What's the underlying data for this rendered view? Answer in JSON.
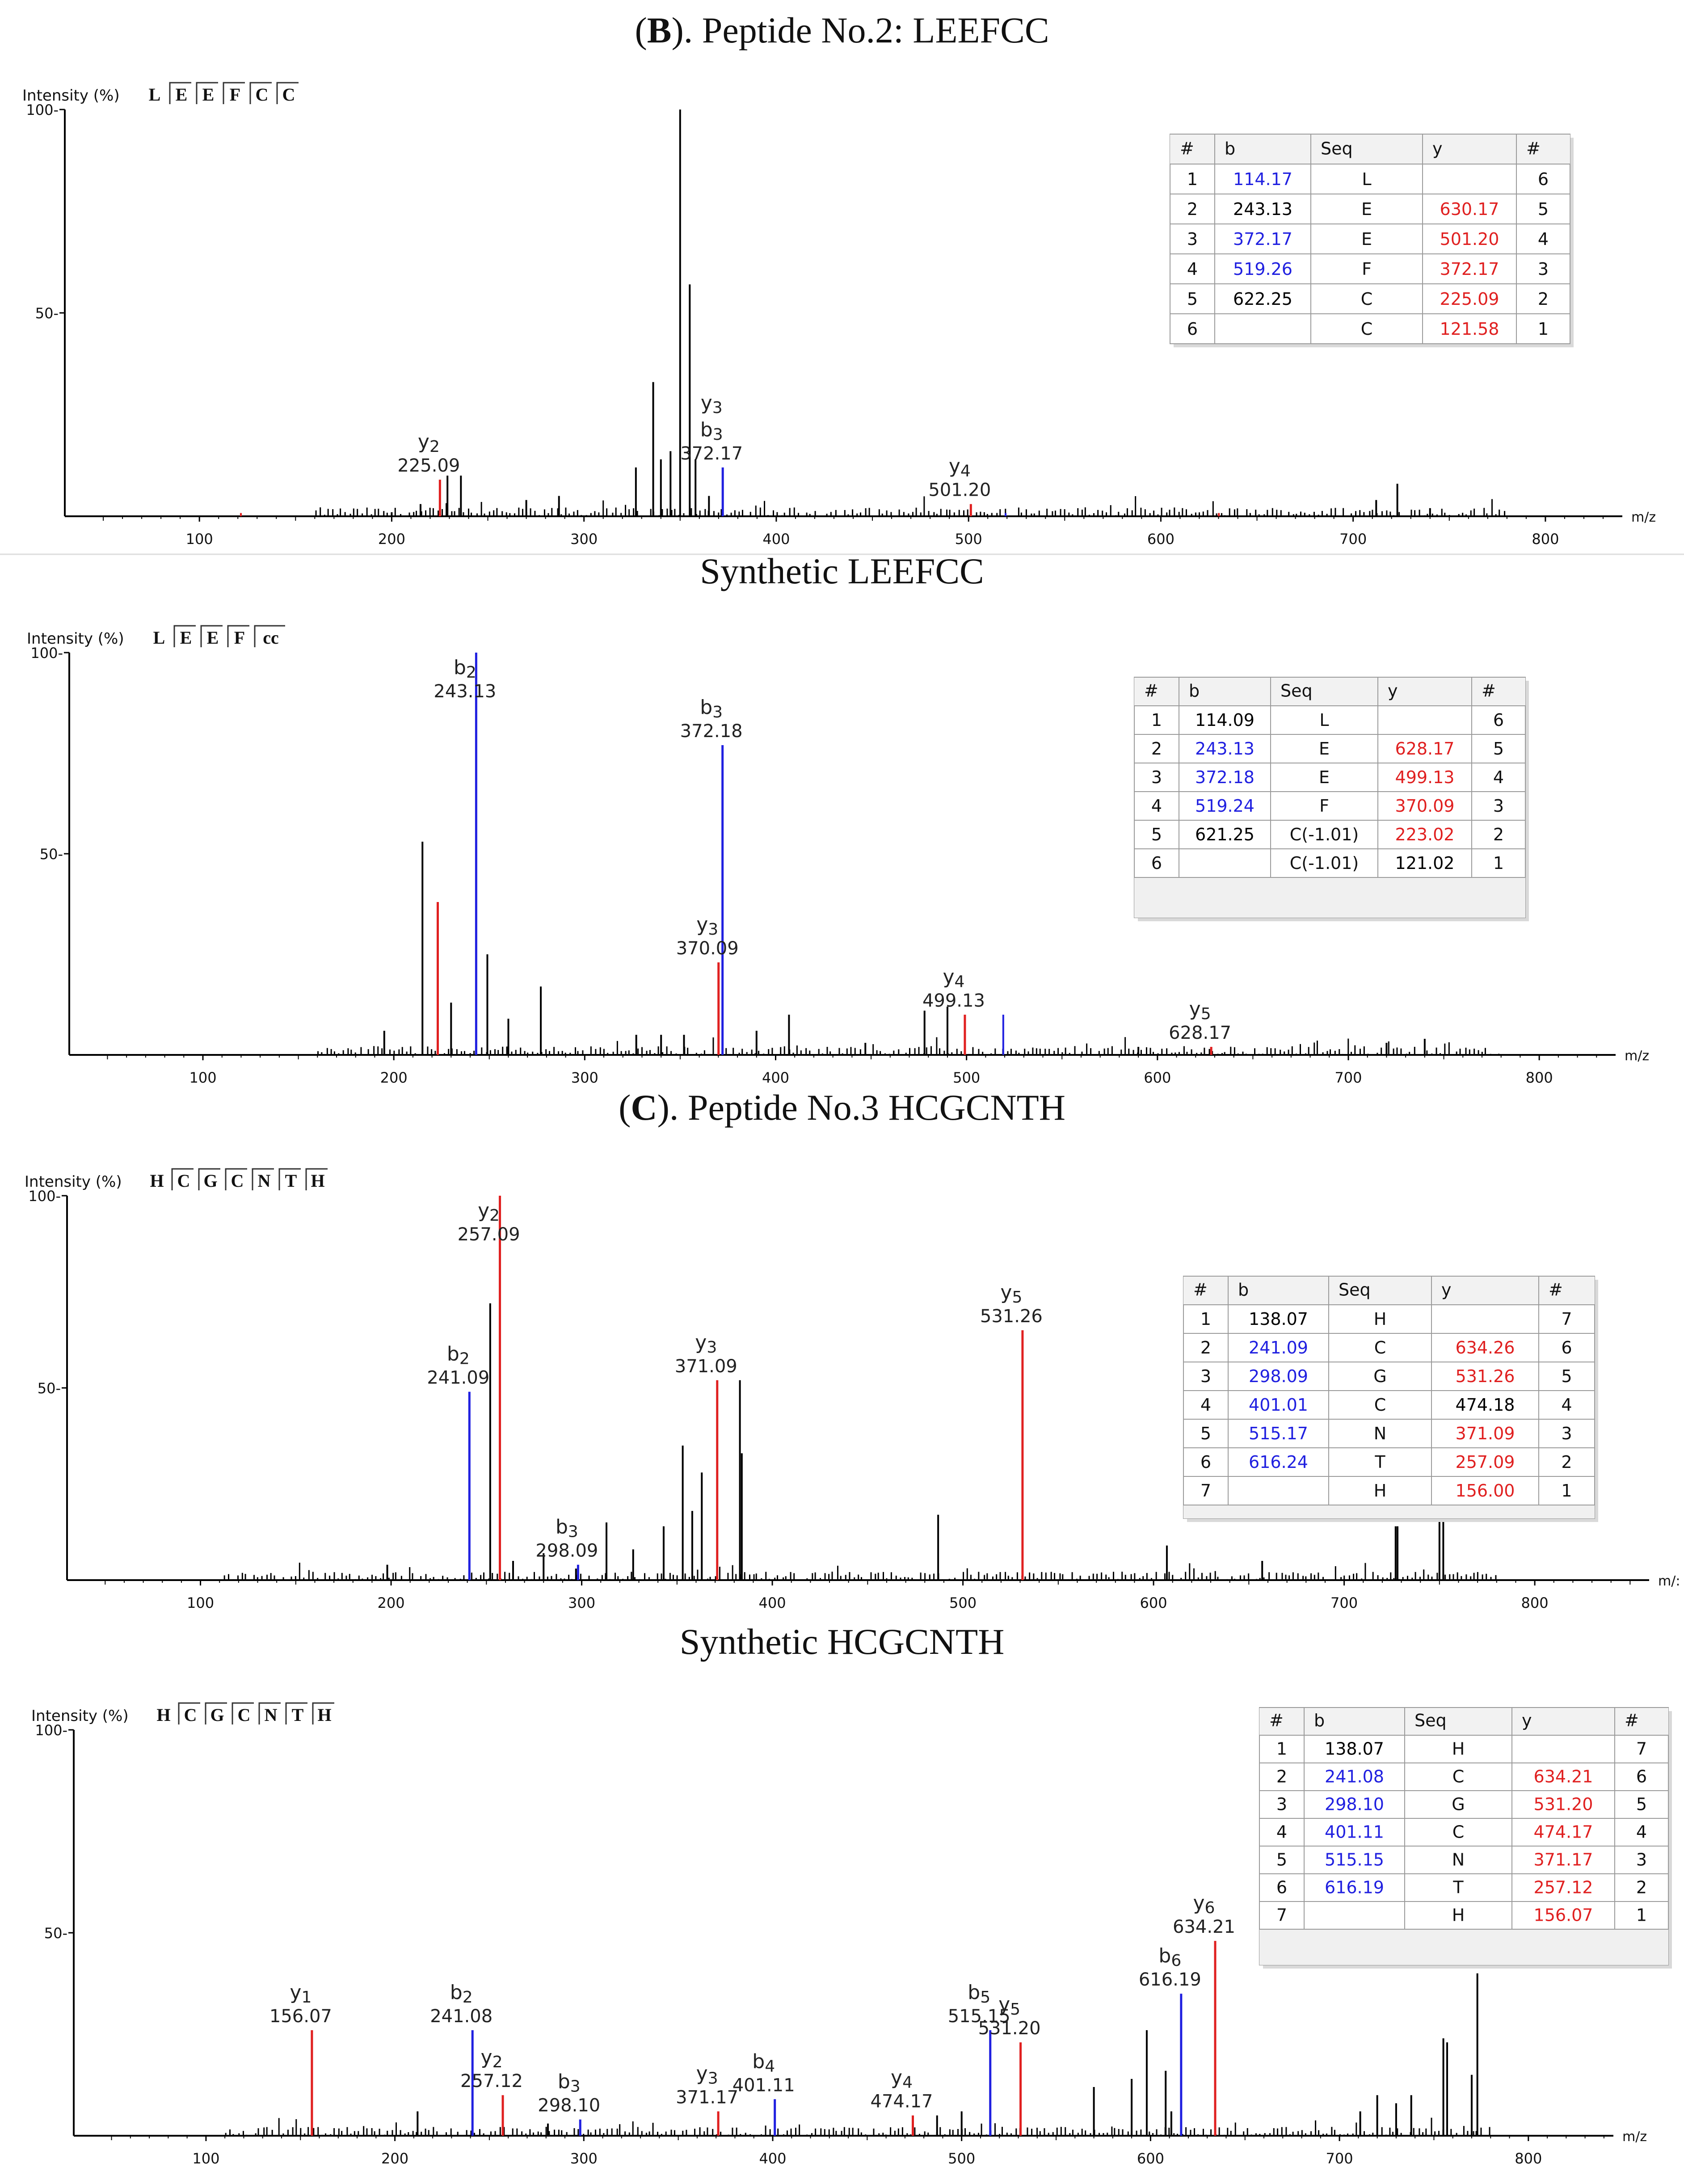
{
  "chart_data": [
    {
      "type": "bar",
      "title_parts": [
        {
          "text": "(",
          "bold": false
        },
        {
          "text": "B",
          "bold": true
        },
        {
          "text": "). Peptide No.2: LEEFCC",
          "bold": false
        }
      ],
      "ylabel": "Intensity (%)",
      "xlabel": "m/z",
      "sequence": [
        "L",
        "E",
        "E",
        "F",
        "C",
        "C"
      ],
      "xlim": [
        30,
        840
      ],
      "ylim": [
        0,
        100
      ],
      "xticks": [
        100,
        200,
        300,
        400,
        500,
        600,
        700,
        800
      ],
      "yticks": [
        50,
        100
      ],
      "peaks": [
        [
          200,
          1
        ],
        [
          215,
          3
        ],
        [
          229,
          10
        ],
        [
          236,
          10
        ],
        [
          270,
          4
        ],
        [
          287,
          5
        ],
        [
          327,
          12
        ],
        [
          336,
          33
        ],
        [
          340,
          14
        ],
        [
          345,
          16
        ],
        [
          350,
          100
        ],
        [
          355,
          57
        ],
        [
          358,
          14
        ],
        [
          365,
          5
        ],
        [
          712,
          4
        ],
        [
          723,
          8
        ],
        [
          740,
          2
        ]
      ],
      "noise_range": [
        160,
        780
      ],
      "labeled_peaks": [
        {
          "mz": 225.09,
          "intensity": 9,
          "ion": "y",
          "sub": "2",
          "mz_label": "225.09"
        },
        {
          "mz": 372.17,
          "intensity": 12,
          "ion": "b",
          "sub": "3",
          "mz_label": "372.17",
          "extra_ion": "y",
          "extra_sub": "3"
        },
        {
          "mz": 501.2,
          "intensity": 3,
          "ion": "y",
          "sub": "4",
          "mz_label": "501.20"
        }
      ],
      "extra_colored": [
        {
          "mz": 121.58,
          "intensity": 0.8,
          "color": "red"
        },
        {
          "mz": 630.17,
          "intensity": 0.8,
          "color": "red"
        },
        {
          "mz": 519.26,
          "intensity": 0.8,
          "color": "blue"
        }
      ],
      "table": {
        "headers": [
          "#",
          "b",
          "Seq",
          "y",
          "#"
        ],
        "rows": [
          {
            "n": "1",
            "b": "114.17",
            "bc": "blue",
            "seq": "L",
            "y": "",
            "yc": "red",
            "m": "6"
          },
          {
            "n": "2",
            "b": "243.13",
            "bc": "black",
            "seq": "E",
            "y": "630.17",
            "yc": "red",
            "m": "5"
          },
          {
            "n": "3",
            "b": "372.17",
            "bc": "blue",
            "seq": "E",
            "y": "501.20",
            "yc": "red",
            "m": "4"
          },
          {
            "n": "4",
            "b": "519.26",
            "bc": "blue",
            "seq": "F",
            "y": "372.17",
            "yc": "red",
            "m": "3"
          },
          {
            "n": "5",
            "b": "622.25",
            "bc": "black",
            "seq": "C",
            "y": "225.09",
            "yc": "red",
            "m": "2"
          },
          {
            "n": "6",
            "b": "",
            "bc": "black",
            "seq": "C",
            "y": "121.58",
            "yc": "red",
            "m": "1"
          }
        ]
      }
    },
    {
      "type": "bar",
      "title_parts": [
        {
          "text": "Synthetic LEEFCC",
          "bold": false
        }
      ],
      "ylabel": "Intensity (%)",
      "xlabel": "m/z",
      "sequence": [
        "L",
        "E",
        "E",
        "F",
        "cc"
      ],
      "xlim": [
        30,
        840
      ],
      "ylim": [
        0,
        100
      ],
      "xticks": [
        100,
        200,
        300,
        400,
        500,
        600,
        700,
        800
      ],
      "yticks": [
        50,
        100
      ],
      "peaks": [
        [
          195,
          6
        ],
        [
          215,
          53
        ],
        [
          230,
          13
        ],
        [
          249,
          25
        ],
        [
          260,
          9
        ],
        [
          277,
          17
        ],
        [
          327,
          5
        ],
        [
          340,
          5
        ],
        [
          352,
          5
        ],
        [
          390,
          6
        ],
        [
          407,
          10
        ],
        [
          447,
          3
        ],
        [
          478,
          11
        ],
        [
          490,
          12
        ],
        [
          590,
          2
        ],
        [
          720,
          3
        ],
        [
          740,
          4
        ]
      ],
      "noise_range": [
        160,
        780
      ],
      "labeled_peaks": [
        {
          "mz": 223.02,
          "intensity": 38,
          "ion": "",
          "sub": "",
          "mz_label": "",
          "color": "red"
        },
        {
          "mz": 243.13,
          "intensity": 100,
          "ion": "b",
          "sub": "2",
          "mz_label": "243.13"
        },
        {
          "mz": 372.18,
          "intensity": 77,
          "ion": "b",
          "sub": "3",
          "mz_label": "372.18"
        },
        {
          "mz": 370.09,
          "intensity": 23,
          "ion": "y",
          "sub": "3",
          "mz_label": "370.09"
        },
        {
          "mz": 499.13,
          "intensity": 10,
          "ion": "y",
          "sub": "4",
          "mz_label": "499.13",
          "extra_blue_mz": 519.24
        },
        {
          "mz": 628.17,
          "intensity": 2,
          "ion": "y",
          "sub": "5",
          "mz_label": "628.17"
        }
      ],
      "extra_colored": [
        {
          "mz": 519.24,
          "intensity": 10,
          "color": "blue"
        }
      ],
      "table": {
        "headers": [
          "#",
          "b",
          "Seq",
          "y",
          "#"
        ],
        "rows": [
          {
            "n": "1",
            "b": "114.09",
            "bc": "black",
            "seq": "L",
            "y": "",
            "yc": "red",
            "m": "6"
          },
          {
            "n": "2",
            "b": "243.13",
            "bc": "blue",
            "seq": "E",
            "y": "628.17",
            "yc": "red",
            "m": "5"
          },
          {
            "n": "3",
            "b": "372.18",
            "bc": "blue",
            "seq": "E",
            "y": "499.13",
            "yc": "red",
            "m": "4"
          },
          {
            "n": "4",
            "b": "519.24",
            "bc": "blue",
            "seq": "F",
            "y": "370.09",
            "yc": "red",
            "m": "3"
          },
          {
            "n": "5",
            "b": "621.25",
            "bc": "black",
            "seq": "C(-1.01)",
            "y": "223.02",
            "yc": "red",
            "m": "2"
          },
          {
            "n": "6",
            "b": "",
            "bc": "black",
            "seq": "C(-1.01)",
            "y": "121.02",
            "yc": "black",
            "m": "1"
          }
        ]
      }
    },
    {
      "type": "bar",
      "title_parts": [
        {
          "text": "(",
          "bold": false
        },
        {
          "text": "C",
          "bold": true
        },
        {
          "text": "). Peptide No.3 HCGCNTH",
          "bold": false
        }
      ],
      "ylabel": "Intensity (%)",
      "xlabel": "m/:",
      "sequence": [
        "H",
        "C",
        "G",
        "C",
        "N",
        "T",
        "H"
      ],
      "xlim": [
        30,
        860
      ],
      "ylim": [
        0,
        100
      ],
      "xticks": [
        100,
        200,
        300,
        400,
        500,
        600,
        700,
        800
      ],
      "yticks": [
        50,
        100
      ],
      "peaks": [
        [
          198,
          4
        ],
        [
          252,
          72
        ],
        [
          264,
          5
        ],
        [
          280,
          7
        ],
        [
          297,
          3
        ],
        [
          313,
          15
        ],
        [
          327,
          8
        ],
        [
          343,
          14
        ],
        [
          353,
          35
        ],
        [
          358,
          18
        ],
        [
          363,
          28
        ],
        [
          383,
          52
        ],
        [
          384,
          33
        ],
        [
          487,
          17
        ],
        [
          607,
          9
        ],
        [
          657,
          5
        ],
        [
          727,
          14
        ],
        [
          728,
          14
        ],
        [
          750,
          24
        ],
        [
          752,
          24
        ]
      ],
      "noise_range": [
        110,
        780
      ],
      "labeled_peaks": [
        {
          "mz": 241.09,
          "intensity": 49,
          "ion": "b",
          "sub": "2",
          "mz_label": "241.09"
        },
        {
          "mz": 257.09,
          "intensity": 100,
          "ion": "y",
          "sub": "2",
          "mz_label": "257.09"
        },
        {
          "mz": 298.09,
          "intensity": 4,
          "ion": "b",
          "sub": "3",
          "mz_label": "298.09"
        },
        {
          "mz": 371.09,
          "intensity": 52,
          "ion": "y",
          "sub": "3",
          "mz_label": "371.09"
        },
        {
          "mz": 531.26,
          "intensity": 65,
          "ion": "y",
          "sub": "5",
          "mz_label": "531.26"
        }
      ],
      "extra_colored": [],
      "table": {
        "headers": [
          "#",
          "b",
          "Seq",
          "y",
          "#"
        ],
        "rows": [
          {
            "n": "1",
            "b": "138.07",
            "bc": "black",
            "seq": "H",
            "y": "",
            "yc": "red",
            "m": "7"
          },
          {
            "n": "2",
            "b": "241.09",
            "bc": "blue",
            "seq": "C",
            "y": "634.26",
            "yc": "red",
            "m": "6"
          },
          {
            "n": "3",
            "b": "298.09",
            "bc": "blue",
            "seq": "G",
            "y": "531.26",
            "yc": "red",
            "m": "5"
          },
          {
            "n": "4",
            "b": "401.01",
            "bc": "blue",
            "seq": "C",
            "y": "474.18",
            "yc": "black",
            "m": "4"
          },
          {
            "n": "5",
            "b": "515.17",
            "bc": "blue",
            "seq": "N",
            "y": "371.09",
            "yc": "red",
            "m": "3"
          },
          {
            "n": "6",
            "b": "616.24",
            "bc": "blue",
            "seq": "T",
            "y": "257.09",
            "yc": "red",
            "m": "2"
          },
          {
            "n": "7",
            "b": "",
            "bc": "black",
            "seq": "H",
            "y": "156.00",
            "yc": "red",
            "m": "1"
          }
        ]
      }
    },
    {
      "type": "bar",
      "title_parts": [
        {
          "text": "Synthetic HCGCNTH",
          "bold": false
        }
      ],
      "ylabel": "Intensity (%)",
      "xlabel": "m/z",
      "sequence": [
        "H",
        "C",
        "G",
        "C",
        "N",
        "T",
        "H"
      ],
      "xlim": [
        30,
        845
      ],
      "ylim": [
        0,
        100
      ],
      "xticks": [
        100,
        200,
        300,
        400,
        500,
        600,
        700,
        800
      ],
      "yticks": [
        50,
        100
      ],
      "peaks": [
        [
          212,
          6
        ],
        [
          281,
          3
        ],
        [
          487,
          5
        ],
        [
          500,
          6
        ],
        [
          570,
          12
        ],
        [
          590,
          14
        ],
        [
          598,
          26
        ],
        [
          608,
          16
        ],
        [
          611,
          6
        ],
        [
          711,
          6
        ],
        [
          720,
          10
        ],
        [
          730,
          8
        ],
        [
          738,
          10
        ],
        [
          755,
          24
        ],
        [
          757,
          23
        ],
        [
          770,
          15
        ],
        [
          773,
          40
        ]
      ],
      "noise_range": [
        110,
        780
      ],
      "labeled_peaks": [
        {
          "mz": 156.07,
          "intensity": 26,
          "ion": "y",
          "sub": "1",
          "mz_label": "156.07"
        },
        {
          "mz": 241.08,
          "intensity": 26,
          "ion": "b",
          "sub": "2",
          "mz_label": "241.08"
        },
        {
          "mz": 257.12,
          "intensity": 10,
          "ion": "y",
          "sub": "2",
          "mz_label": "257.12"
        },
        {
          "mz": 298.1,
          "intensity": 4,
          "ion": "b",
          "sub": "3",
          "mz_label": "298.10"
        },
        {
          "mz": 371.17,
          "intensity": 6,
          "ion": "y",
          "sub": "3",
          "mz_label": "371.17"
        },
        {
          "mz": 401.11,
          "intensity": 9,
          "ion": "b",
          "sub": "4",
          "mz_label": "401.11"
        },
        {
          "mz": 474.17,
          "intensity": 5,
          "ion": "y",
          "sub": "4",
          "mz_label": "474.17"
        },
        {
          "mz": 515.15,
          "intensity": 26,
          "ion": "b",
          "sub": "5",
          "mz_label": "515.15"
        },
        {
          "mz": 531.2,
          "intensity": 23,
          "ion": "y",
          "sub": "5",
          "mz_label": "531.20"
        },
        {
          "mz": 616.19,
          "intensity": 35,
          "ion": "b",
          "sub": "6",
          "mz_label": "616.19"
        },
        {
          "mz": 634.21,
          "intensity": 48,
          "ion": "y",
          "sub": "6",
          "mz_label": "634.21"
        }
      ],
      "extra_colored": [],
      "table": {
        "headers": [
          "#",
          "b",
          "Seq",
          "y",
          "#"
        ],
        "rows": [
          {
            "n": "1",
            "b": "138.07",
            "bc": "black",
            "seq": "H",
            "y": "",
            "yc": "red",
            "m": "7"
          },
          {
            "n": "2",
            "b": "241.08",
            "bc": "blue",
            "seq": "C",
            "y": "634.21",
            "yc": "red",
            "m": "6"
          },
          {
            "n": "3",
            "b": "298.10",
            "bc": "blue",
            "seq": "G",
            "y": "531.20",
            "yc": "red",
            "m": "5"
          },
          {
            "n": "4",
            "b": "401.11",
            "bc": "blue",
            "seq": "C",
            "y": "474.17",
            "yc": "red",
            "m": "4"
          },
          {
            "n": "5",
            "b": "515.15",
            "bc": "blue",
            "seq": "N",
            "y": "371.17",
            "yc": "red",
            "m": "3"
          },
          {
            "n": "6",
            "b": "616.19",
            "bc": "blue",
            "seq": "T",
            "y": "257.12",
            "yc": "red",
            "m": "2"
          },
          {
            "n": "7",
            "b": "",
            "bc": "black",
            "seq": "H",
            "y": "156.07",
            "yc": "red",
            "m": "1"
          }
        ]
      }
    }
  ],
  "colors": {
    "b_ion": "#2020e0",
    "y_ion": "#e02020",
    "peak": "#000000",
    "table_header_bg": "#f2f2f2",
    "table_border": "#9a9a9a"
  }
}
